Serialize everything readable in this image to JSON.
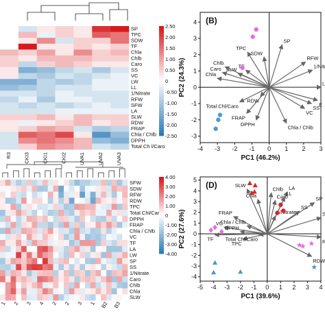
{
  "heatmap_top": {
    "rows": [
      "SP",
      "TPC",
      "SDW",
      "TF",
      "Chla",
      "Chlb",
      "Caro",
      "SS",
      "VC",
      "LW",
      "LL",
      "1/Nitrate",
      "RFW",
      "SFW",
      "LA",
      "SLW",
      "RDW",
      "FRAP",
      "Chla / Chlb",
      "DPPH",
      "Total Ch l/Caro"
    ],
    "cols": [
      "R3",
      "CKI3",
      "CKI1",
      "CKI2",
      "UVA1",
      "UVA2",
      "UVA3"
    ],
    "colorbar_ticks": [
      "2.50",
      "2.00",
      "1.50",
      "1.00",
      "0.50",
      "0",
      "-0.50",
      "-1.00",
      "-1.50",
      "-2.00",
      "-2.50"
    ],
    "colors": {
      "high": "#d7191c",
      "mid": "#ffffff",
      "low": "#2c7bb6"
    }
  },
  "heatmap_bottom": {
    "rows": [
      "SFW",
      "SDW",
      "RFW",
      "RDW",
      "TPC",
      "Total Chl/Caro",
      "DPPH",
      "FRAP",
      "Chla / Chlb",
      "VC",
      "TF",
      "LA",
      "LW",
      "SP",
      "SS",
      "1/Nitrate",
      "Caro",
      "Chlb",
      "Chla",
      "SLW"
    ],
    "colorbar_ticks": [
      "4.00",
      "3.00",
      "2.00",
      "1.00",
      "0",
      "-1.00",
      "-2.00",
      "-3.00",
      "-4.00"
    ],
    "col_labels": [
      "1",
      "2",
      "3",
      "4",
      "2",
      "2",
      "3",
      "1",
      "B2",
      "B3"
    ]
  },
  "chart_data": [
    {
      "type": "scatter",
      "panel": "(B)",
      "xlabel": "PC1 (46.2%)",
      "ylabel": "PC2 (24.3%)",
      "xlim": [
        -4,
        3
      ],
      "ylim": [
        -3.4,
        4.6
      ],
      "xticks": [
        "-4",
        "-3",
        "-2",
        "-1",
        "0",
        "1",
        "2",
        "3"
      ],
      "yticks": [
        "-3",
        "-2",
        "-1",
        "0",
        "1",
        "2",
        "3",
        "4"
      ],
      "points": [
        {
          "x": -0.75,
          "y": 3.55,
          "color": "#e36be3"
        },
        {
          "x": -0.95,
          "y": 3.1,
          "color": "#e36be3"
        },
        {
          "x": -1.55,
          "y": 1.2,
          "color": "#e36be3"
        },
        {
          "x": -2.85,
          "y": -1.7,
          "color": "#4a9bd0"
        },
        {
          "x": -2.95,
          "y": -2.0,
          "color": "#4a9bd0"
        },
        {
          "x": -3.1,
          "y": -2.55,
          "color": "#4a9bd0"
        }
      ],
      "loadings": [
        {
          "label": "SP",
          "x": 0.75,
          "y": 2.6
        },
        {
          "label": "TPC",
          "x": -1.25,
          "y": 2.15
        },
        {
          "label": "SDW",
          "x": -0.3,
          "y": 1.85
        },
        {
          "label": "TF",
          "x": -1.35,
          "y": 1.05
        },
        {
          "label": "SLW",
          "x": -1.8,
          "y": 0.85
        },
        {
          "label": "Chlb",
          "x": -2.55,
          "y": 1.25
        },
        {
          "label": "Caro",
          "x": -2.7,
          "y": 0.9
        },
        {
          "label": "Chla",
          "x": -3.0,
          "y": 0.55
        },
        {
          "label": "RFW",
          "x": 2.1,
          "y": 1.55
        },
        {
          "label": "1/Nitra",
          "x": 2.5,
          "y": 1.05
        },
        {
          "label": "L",
          "x": 3.0,
          "y": 0.0
        },
        {
          "label": "RDW",
          "x": -0.5,
          "y": -0.55
        },
        {
          "label": "Total Chl/Caro",
          "x": -1.7,
          "y": -0.9
        },
        {
          "label": "FRAP",
          "x": -1.3,
          "y": -1.6
        },
        {
          "label": "DPPH",
          "x": -0.75,
          "y": -2.0
        },
        {
          "label": "Chla / Chlb",
          "x": 1.0,
          "y": -2.2
        },
        {
          "label": "VC",
          "x": 2.05,
          "y": -1.3
        },
        {
          "label": "SS",
          "x": 2.45,
          "y": -1.0
        },
        {
          "label": "E",
          "x": 2.8,
          "y": -0.8
        }
      ]
    },
    {
      "type": "scatter",
      "panel": "(D)",
      "xlabel": "PC1 (39.6%)",
      "ylabel": "PC2 (27.6%)",
      "xlim": [
        -5,
        4
      ],
      "ylim": [
        -4.4,
        5.3
      ],
      "xticks": [
        "-5",
        "-4",
        "-3",
        "-2",
        "-1",
        "0",
        "1",
        "2",
        "3",
        "4"
      ],
      "yticks": [
        "-4",
        "-3",
        "-2",
        "-1",
        "0",
        "1",
        "2",
        "3",
        "4",
        "5"
      ],
      "points": [
        {
          "x": -1.3,
          "y": 4.7,
          "color": "#d7262a",
          "marker": "triangle"
        },
        {
          "x": -0.9,
          "y": 4.5,
          "color": "#d7262a",
          "marker": "triangle"
        },
        {
          "x": -1.15,
          "y": 3.8,
          "color": "#d7262a",
          "marker": "triangle"
        },
        {
          "x": -0.95,
          "y": 3.9,
          "color": "#d7262a",
          "marker": "triangle"
        },
        {
          "x": 1.0,
          "y": 2.7,
          "color": "#d7262a",
          "marker": "circle"
        },
        {
          "x": 1.2,
          "y": 2.15,
          "color": "#d7262a",
          "marker": "circle"
        },
        {
          "x": 0.75,
          "y": 1.95,
          "color": "#d7262a",
          "marker": "circle"
        },
        {
          "x": -3.9,
          "y": 0.6,
          "color": "#e36be3",
          "marker": "diamond"
        },
        {
          "x": -3.4,
          "y": 0.2,
          "color": "#e36be3",
          "marker": "diamond"
        },
        {
          "x": -4.2,
          "y": 0.35,
          "color": "#e36be3",
          "marker": "diamond"
        },
        {
          "x": 2.4,
          "y": -1.05,
          "color": "#e36be3",
          "marker": "star"
        },
        {
          "x": 2.65,
          "y": -1.15,
          "color": "#e36be3",
          "marker": "star"
        },
        {
          "x": 3.3,
          "y": -0.9,
          "color": "#e36be3",
          "marker": "star"
        },
        {
          "x": -3.9,
          "y": -2.7,
          "color": "#4a9bd0",
          "marker": "triangle"
        },
        {
          "x": -4.0,
          "y": -3.6,
          "color": "#4a9bd0",
          "marker": "triangle"
        },
        {
          "x": -2.0,
          "y": -3.55,
          "color": "#4a9bd0",
          "marker": "triangle"
        },
        {
          "x": 3.5,
          "y": -3.1,
          "color": "#4a9bd0",
          "marker": "star"
        }
      ],
      "loadings": [
        {
          "label": "SLW",
          "x": -1.5,
          "y": 4.15
        },
        {
          "label": "Chla",
          "x": -0.7,
          "y": 3.2
        },
        {
          "label": "Chlb",
          "x": 0.3,
          "y": 3.8
        },
        {
          "label": "Caro",
          "x": 0.6,
          "y": 3.1
        },
        {
          "label": "LA",
          "x": 1.5,
          "y": 3.9
        },
        {
          "label": "LL",
          "x": 1.3,
          "y": 3.4
        },
        {
          "label": "1/Nitrate",
          "x": 0.6,
          "y": 1.65
        },
        {
          "label": "SP",
          "x": 3.5,
          "y": 2.9
        },
        {
          "label": "SS",
          "x": 2.4,
          "y": 2.1
        },
        {
          "label": "S",
          "x": 4.0,
          "y": 1.5
        },
        {
          "label": "FRAP",
          "x": -2.5,
          "y": 1.6
        },
        {
          "label": "Chla / Chlb",
          "x": -1.5,
          "y": 0.75
        },
        {
          "label": "VC",
          "x": -3.2,
          "y": 0.6
        },
        {
          "label": "DPPH",
          "x": -2.0,
          "y": 0.2
        },
        {
          "label": "TF",
          "x": -3.9,
          "y": -0.1
        },
        {
          "label": "TPC",
          "x": -1.8,
          "y": -0.5
        },
        {
          "label": "Total Chl/Caro",
          "x": -0.6,
          "y": -0.1
        },
        {
          "label": "RDW",
          "x": 3.3,
          "y": -2.1
        },
        {
          "label": "R",
          "x": 4.0,
          "y": -0.3
        }
      ]
    }
  ]
}
